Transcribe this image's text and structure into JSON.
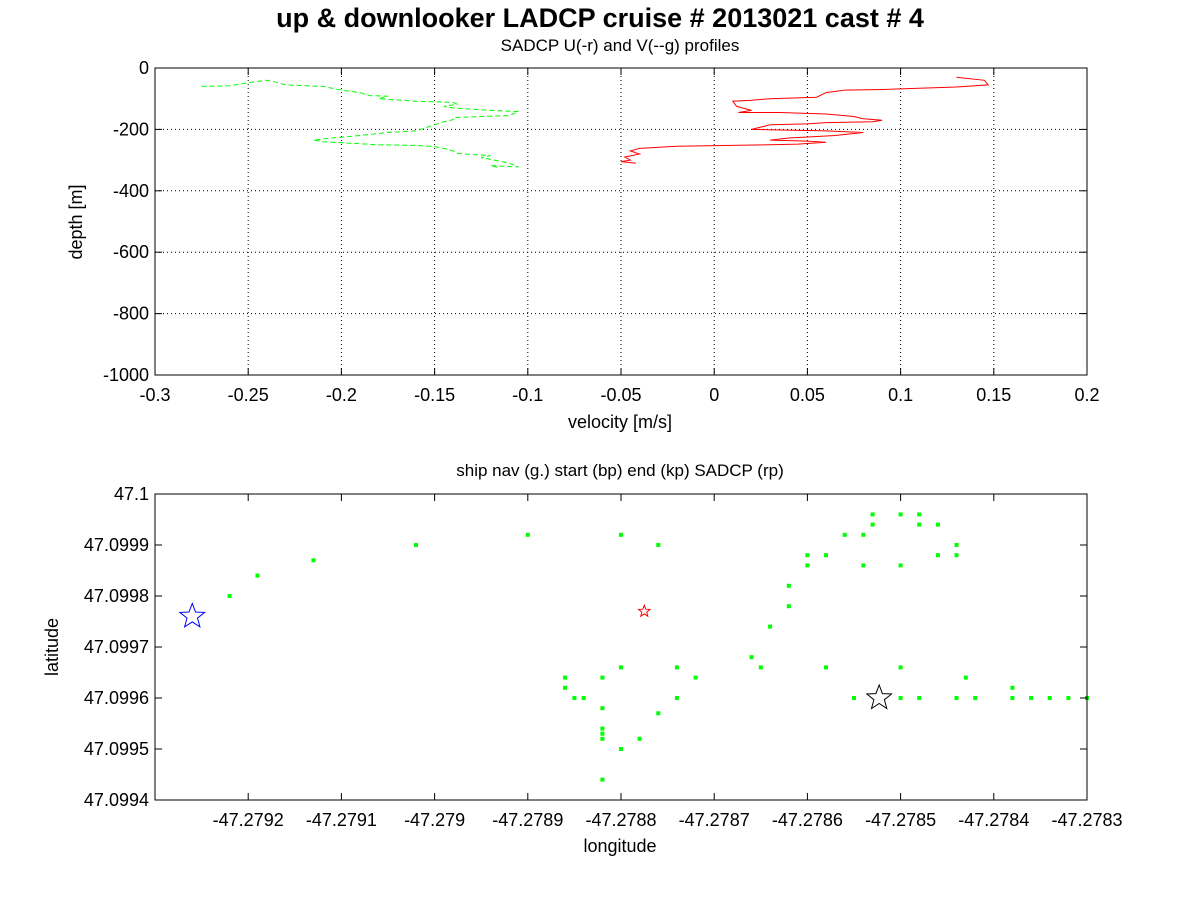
{
  "figure": {
    "title": "up & downlooker LADCP cruise # 2013021 cast # 4"
  },
  "chart_data": [
    {
      "type": "line",
      "title": "SADCP U(-r) and V(--g) profiles",
      "xlabel": "velocity [m/s]",
      "ylabel": "depth [m]",
      "xlim": [
        -0.3,
        0.2
      ],
      "ylim": [
        -1000,
        0
      ],
      "xticks": [
        -0.3,
        -0.25,
        -0.2,
        -0.15,
        -0.1,
        -0.05,
        0,
        0.05,
        0.1,
        0.15,
        0.2
      ],
      "xtick_labels": [
        "-0.3",
        "-0.25",
        "-0.2",
        "-0.15",
        "-0.1",
        "-0.05",
        "0",
        "0.05",
        "0.1",
        "0.15",
        "0.2"
      ],
      "yticks": [
        -1000,
        -800,
        -600,
        -400,
        -200,
        0
      ],
      "ytick_labels": [
        "-1000",
        "-800",
        "-600",
        "-400",
        "-200",
        "0"
      ],
      "grid": true,
      "series": [
        {
          "color": "#ff0000",
          "style": "solid",
          "points": [
            [
              0.13,
              -30
            ],
            [
              0.145,
              -40
            ],
            [
              0.147,
              -55
            ],
            [
              0.13,
              -62
            ],
            [
              0.09,
              -70
            ],
            [
              0.07,
              -72
            ],
            [
              0.06,
              -80
            ],
            [
              0.055,
              -95
            ],
            [
              0.03,
              -100
            ],
            [
              0.02,
              -105
            ],
            [
              0.01,
              -108
            ],
            [
              0.012,
              -125
            ],
            [
              0.02,
              -138
            ],
            [
              0.013,
              -145
            ],
            [
              0.035,
              -145
            ],
            [
              0.06,
              -150
            ],
            [
              0.075,
              -158
            ],
            [
              0.08,
              -165
            ],
            [
              0.09,
              -170
            ],
            [
              0.085,
              -175
            ],
            [
              0.06,
              -178
            ],
            [
              0.05,
              -182
            ],
            [
              0.03,
              -185
            ],
            [
              0.02,
              -200
            ],
            [
              0.06,
              -205
            ],
            [
              0.08,
              -210
            ],
            [
              0.065,
              -220
            ],
            [
              0.04,
              -228
            ],
            [
              0.03,
              -235
            ],
            [
              0.05,
              -238
            ],
            [
              0.06,
              -242
            ],
            [
              0.045,
              -248
            ],
            [
              0.03,
              -250
            ],
            [
              -0.02,
              -255
            ],
            [
              -0.04,
              -262
            ],
            [
              -0.045,
              -270
            ],
            [
              -0.04,
              -280
            ],
            [
              -0.048,
              -290
            ],
            [
              -0.045,
              -300
            ],
            [
              -0.05,
              -305
            ],
            [
              -0.042,
              -310
            ]
          ]
        },
        {
          "color": "#00ff00",
          "style": "dashed",
          "points": [
            [
              -0.275,
              -60
            ],
            [
              -0.26,
              -58
            ],
            [
              -0.25,
              -48
            ],
            [
              -0.24,
              -40
            ],
            [
              -0.236,
              -45
            ],
            [
              -0.23,
              -55
            ],
            [
              -0.21,
              -60
            ],
            [
              -0.2,
              -72
            ],
            [
              -0.19,
              -80
            ],
            [
              -0.185,
              -90
            ],
            [
              -0.175,
              -92
            ],
            [
              -0.18,
              -100
            ],
            [
              -0.16,
              -108
            ],
            [
              -0.14,
              -112
            ],
            [
              -0.138,
              -118
            ],
            [
              -0.145,
              -125
            ],
            [
              -0.14,
              -130
            ],
            [
              -0.12,
              -138
            ],
            [
              -0.105,
              -142
            ],
            [
              -0.108,
              -150
            ],
            [
              -0.11,
              -155
            ],
            [
              -0.125,
              -158
            ],
            [
              -0.14,
              -162
            ],
            [
              -0.14,
              -168
            ],
            [
              -0.145,
              -175
            ],
            [
              -0.15,
              -185
            ],
            [
              -0.155,
              -195
            ],
            [
              -0.16,
              -205
            ],
            [
              -0.175,
              -210
            ],
            [
              -0.19,
              -220
            ],
            [
              -0.205,
              -228
            ],
            [
              -0.215,
              -235
            ],
            [
              -0.21,
              -240
            ],
            [
              -0.195,
              -245
            ],
            [
              -0.18,
              -250
            ],
            [
              -0.16,
              -252
            ],
            [
              -0.15,
              -256
            ],
            [
              -0.145,
              -262
            ],
            [
              -0.14,
              -270
            ],
            [
              -0.138,
              -278
            ],
            [
              -0.13,
              -282
            ],
            [
              -0.12,
              -285
            ],
            [
              -0.125,
              -292
            ],
            [
              -0.118,
              -300
            ],
            [
              -0.11,
              -310
            ],
            [
              -0.105,
              -322
            ],
            [
              -0.12,
              -318
            ],
            [
              -0.115,
              -325
            ]
          ]
        }
      ]
    },
    {
      "type": "scatter",
      "title": "ship nav (g.) start (bp) end (kp) SADCP (rp)",
      "xlabel": "longitude",
      "ylabel": "latitude",
      "xlim": [
        -47.2793,
        -47.2783
      ],
      "ylim": [
        47.0994,
        47.1
      ],
      "xticks": [
        -47.2792,
        -47.2791,
        -47.279,
        -47.2789,
        -47.2788,
        -47.2787,
        -47.2786,
        -47.2785,
        -47.2784,
        -47.2783
      ],
      "xtick_labels": [
        "-47.2792",
        "-47.2791",
        "-47.279",
        "-47.2789",
        "-47.2788",
        "-47.2787",
        "-47.2786",
        "-47.2785",
        "-47.2784",
        "-47.2783"
      ],
      "yticks": [
        47.0994,
        47.0995,
        47.0996,
        47.0997,
        47.0998,
        47.0999,
        47.1
      ],
      "ytick_labels": [
        "47.0994",
        "47.0995",
        "47.0996",
        "47.0997",
        "47.0998",
        "47.0999",
        "47.1"
      ],
      "grid": false,
      "nav_color": "#00ff00",
      "nav_points": [
        [
          -47.27922,
          47.0998
        ],
        [
          -47.27919,
          47.09984
        ],
        [
          -47.27913,
          47.09987
        ],
        [
          -47.27902,
          47.0999
        ],
        [
          -47.2789,
          47.09992
        ],
        [
          -47.2788,
          47.09992
        ],
        [
          -47.27876,
          47.0999
        ],
        [
          -47.2788,
          47.09966
        ],
        [
          -47.27886,
          47.09964
        ],
        [
          -47.27886,
          47.09962
        ],
        [
          -47.27885,
          47.0996
        ],
        [
          -47.27884,
          47.0996
        ],
        [
          -47.27882,
          47.09964
        ],
        [
          -47.27882,
          47.09958
        ],
        [
          -47.27882,
          47.09954
        ],
        [
          -47.27882,
          47.09953
        ],
        [
          -47.27882,
          47.09952
        ],
        [
          -47.27882,
          47.09944
        ],
        [
          -47.2788,
          47.0995
        ],
        [
          -47.27878,
          47.09952
        ],
        [
          -47.27876,
          47.09957
        ],
        [
          -47.27874,
          47.0996
        ],
        [
          -47.27874,
          47.09966
        ],
        [
          -47.27872,
          47.09964
        ],
        [
          -47.27866,
          47.09968
        ],
        [
          -47.27865,
          47.09966
        ],
        [
          -47.27864,
          47.09974
        ],
        [
          -47.27862,
          47.09978
        ],
        [
          -47.27862,
          47.09982
        ],
        [
          -47.2786,
          47.09986
        ],
        [
          -47.2786,
          47.09988
        ],
        [
          -47.27858,
          47.09988
        ],
        [
          -47.27856,
          47.09992
        ],
        [
          -47.27854,
          47.09992
        ],
        [
          -47.27854,
          47.09986
        ],
        [
          -47.27858,
          47.09966
        ],
        [
          -47.27855,
          47.0996
        ],
        [
          -47.27853,
          47.09994
        ],
        [
          -47.27853,
          47.09996
        ],
        [
          -47.2785,
          47.09996
        ],
        [
          -47.2785,
          47.09986
        ],
        [
          -47.2785,
          47.09966
        ],
        [
          -47.2785,
          47.0996
        ],
        [
          -47.27848,
          47.09996
        ],
        [
          -47.27848,
          47.09994
        ],
        [
          -47.27848,
          47.0996
        ],
        [
          -47.27846,
          47.09994
        ],
        [
          -47.27846,
          47.09988
        ],
        [
          -47.27844,
          47.0999
        ],
        [
          -47.27844,
          47.09988
        ],
        [
          -47.27843,
          47.09964
        ],
        [
          -47.27842,
          47.0996
        ],
        [
          -47.27844,
          47.0996
        ],
        [
          -47.27838,
          47.09962
        ],
        [
          -47.27838,
          47.0996
        ],
        [
          -47.27836,
          47.0996
        ],
        [
          -47.27834,
          47.0996
        ],
        [
          -47.27832,
          47.0996
        ],
        [
          -47.2783,
          47.0996
        ]
      ],
      "start": {
        "lon": -47.27926,
        "lat": 47.09976,
        "color": "#0000ff"
      },
      "end": {
        "lon": -47.278523,
        "lat": 47.0996,
        "color": "#000000"
      },
      "sadcp": {
        "lon": -47.278775,
        "lat": 47.09977,
        "color": "#ff0000"
      }
    }
  ]
}
